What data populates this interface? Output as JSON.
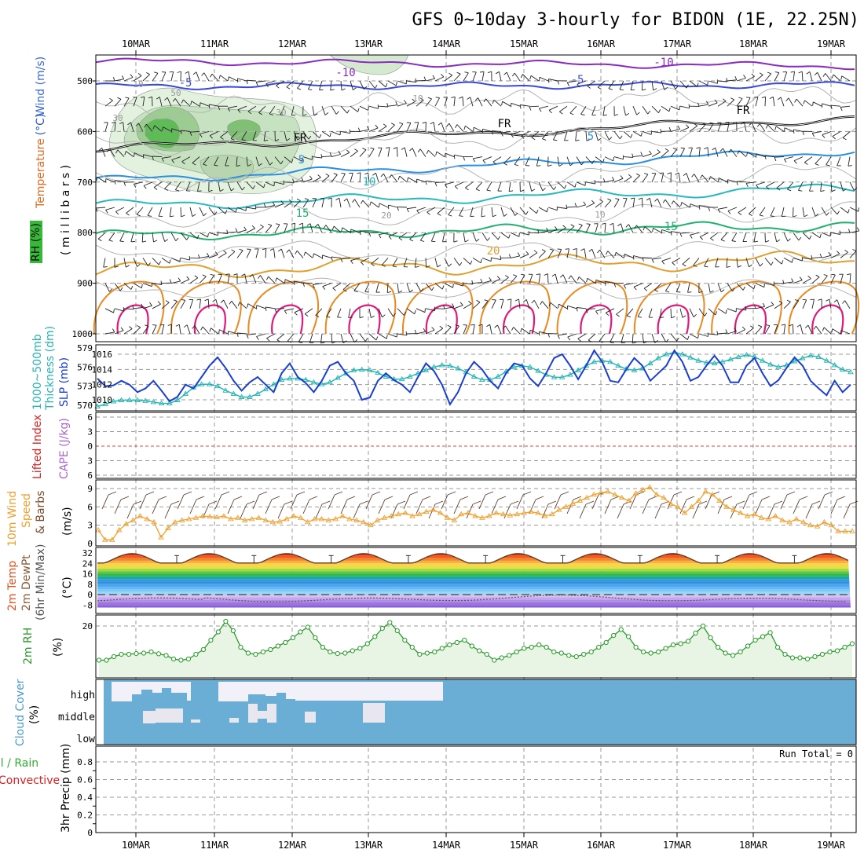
{
  "title": "GFS 0~10day 3-hourly for BIDON (1E, 22.25N)",
  "dates": [
    "10MAR",
    "11MAR",
    "12MAR",
    "13MAR",
    "14MAR",
    "15MAR",
    "16MAR",
    "17MAR",
    "18MAR",
    "19MAR"
  ],
  "panels": {
    "upper": {
      "labels": {
        "rh": "RH (%)",
        "temperature": "Temperature",
        "temp_unit": "(°C)",
        "wind": "Wind (m/s)",
        "mb": "( m i l l i b a r s )"
      },
      "yticks": [
        "500",
        "600",
        "700",
        "800",
        "900",
        "1000"
      ],
      "contour_labels": [
        "-10",
        "-10",
        "-5",
        "5",
        "5",
        "FR",
        "FR",
        "FR",
        "-5",
        "10",
        "15",
        "-15",
        "20",
        "10",
        "30",
        "30",
        "50",
        "10",
        "20",
        "10"
      ]
    },
    "slp": {
      "labels": {
        "thick": "1000~500mb",
        "thick2": "Thickness (dm)",
        "slp": "SLP (mb)"
      },
      "yticks_left": [
        "579",
        "576",
        "573",
        "570"
      ],
      "yticks_right": [
        "1016",
        "1014",
        "1012",
        "1010"
      ]
    },
    "cape": {
      "labels": {
        "li": "Lifted Index",
        "cape": "CAPE (J/kg)"
      },
      "yticks": [
        "6",
        "3",
        "0",
        "3",
        "6"
      ]
    },
    "wind": {
      "labels": {
        "a": "10m Wind",
        "b": "Speed",
        "c": "& Barbs",
        "unit": "(m/s)"
      },
      "yticks": [
        "9",
        "6",
        "3",
        "0"
      ]
    },
    "temp": {
      "labels": {
        "a": "2m Temp",
        "b": "2m DewPt",
        "c": "(6hr Min/Max)",
        "unit": "(°C)"
      },
      "yticks": [
        "32",
        "24",
        "16",
        "8",
        "0",
        "-8"
      ]
    },
    "rh2m": {
      "labels": {
        "a": "2m RH",
        "unit": "(%)"
      },
      "yticks": [
        "20"
      ]
    },
    "cloud": {
      "labels": {
        "a": "Cloud Cover",
        "unit": "(%)"
      },
      "levels": [
        "high",
        "middle",
        "low"
      ]
    },
    "precip": {
      "labels": {
        "a": "Total / Rain",
        "b": "Convective",
        "c": "3hr Precip (mm)"
      },
      "yticks": [
        "0.8",
        "0.6",
        "0.4",
        "0.2",
        "0"
      ],
      "run_total": "Run Total = 0"
    }
  },
  "colors": {
    "slp": "#1a3fd0",
    "thickness": "#22b3b3",
    "wind_speed": "#f0a030",
    "rh2m": "#2a9a2a",
    "cloud_bg": "#6aaed6",
    "cloud_fill": "#eeeef4",
    "rh_label": "#33aa33",
    "temp_label": "#e05020",
    "li_label": "#dd2020",
    "cape_label": "#aa66cc",
    "precip_total": "#33aa33",
    "precip_conv": "#dd2020"
  },
  "chart_data": [
    {
      "type": "line",
      "title": "1000~500mb Thickness (dm) / SLP (mb)",
      "x_labels": [
        "10MAR",
        "11MAR",
        "12MAR",
        "13MAR",
        "14MAR",
        "15MAR",
        "16MAR",
        "17MAR",
        "18MAR",
        "19MAR"
      ],
      "series": [
        {
          "name": "SLP (mb)",
          "values": [
            1012.8,
            1011.8,
            1011.9,
            1012.5,
            1012.0,
            1011.0,
            1011.5,
            1012.5,
            1011.2,
            1009.8,
            1010.4,
            1012.0,
            1011.5,
            1013.0,
            1014.5,
            1015.6,
            1014.2,
            1012.5,
            1011.2,
            1012.3,
            1013.0,
            1012.0,
            1011.0,
            1013.5,
            1014.8,
            1013.0,
            1012.2,
            1011.0,
            1012.5,
            1014.5,
            1015.0,
            1013.5,
            1012.5,
            1010.0,
            1010.3,
            1012.5,
            1013.5,
            1012.6,
            1012.0,
            1011.0,
            1013.0,
            1014.8,
            1013.8,
            1012.0,
            1009.4,
            1011.0,
            1013.5,
            1015.0,
            1014.0,
            1012.5,
            1011.5,
            1013.5,
            1014.8,
            1014.5,
            1012.8,
            1011.8,
            1013.5,
            1015.5,
            1016.0,
            1014.5,
            1012.7,
            1014.5,
            1016.5,
            1015.0,
            1012.5,
            1012.3,
            1014.0,
            1015.5,
            1014.5,
            1012.5,
            1013.5,
            1014.5,
            1016.5,
            1015.0,
            1012.5,
            1013.0,
            1014.5,
            1015.8,
            1014.5,
            1012.3,
            1012.3,
            1014.5,
            1015.5,
            1013.5,
            1011.8,
            1012.6,
            1014.2,
            1015.6,
            1014.5,
            1012.5,
            1011.5,
            1010.6,
            1012.5,
            1011.0,
            1012.0
          ]
        },
        {
          "name": "1000~500mb Thickness (dm)",
          "values": [
            569.8,
            570.2,
            570.6,
            570.8,
            570.8,
            570.8,
            570.7,
            570.5,
            570.3,
            570.3,
            570.8,
            571.8,
            572.8,
            573.3,
            573.3,
            573.0,
            572.3,
            571.8,
            571.3,
            571.3,
            571.8,
            572.5,
            573.3,
            574.0,
            574.2,
            574.2,
            574.0,
            573.6,
            573.3,
            573.6,
            574.3,
            575.0,
            575.5,
            575.6,
            575.5,
            575.1,
            574.5,
            574.1,
            574.1,
            574.5,
            575.0,
            575.5,
            576.0,
            576.3,
            576.2,
            575.8,
            575.2,
            574.5,
            574.0,
            574.0,
            574.5,
            575.3,
            576.0,
            576.2,
            576.0,
            575.4,
            574.8,
            574.4,
            574.4,
            574.8,
            575.5,
            576.2,
            576.8,
            577.0,
            576.8,
            576.2,
            575.7,
            575.5,
            575.8,
            576.6,
            577.4,
            578.0,
            578.3,
            578.0,
            577.5,
            577.0,
            576.7,
            576.6,
            576.8,
            577.2,
            577.6,
            577.9,
            577.6,
            577.0,
            576.4,
            576.0,
            576.3,
            576.9,
            577.4,
            577.8,
            577.6,
            577.0,
            576.3,
            575.6,
            575.2
          ]
        }
      ]
    },
    {
      "type": "line",
      "title": "10m Wind Speed (m/s)",
      "series": [
        {
          "name": "10m Wind Speed",
          "values": [
            2.2,
            0.6,
            0.6,
            2.2,
            3.2,
            3.8,
            4.5,
            4.0,
            3.5,
            1.0,
            2.5,
            3.5,
            3.8,
            4.0,
            4.2,
            4.5,
            4.4,
            4.3,
            4.5,
            4.0,
            4.2,
            3.8,
            4.0,
            4.2,
            3.8,
            3.5,
            3.6,
            4.0,
            4.5,
            4.2,
            3.5,
            4.0,
            4.0,
            3.8,
            4.0,
            4.5,
            4.0,
            3.8,
            3.5,
            3.0,
            3.8,
            4.2,
            4.5,
            4.8,
            5.0,
            4.5,
            4.8,
            5.2,
            5.5,
            5.0,
            4.2,
            3.8,
            4.8,
            5.0,
            4.5,
            4.2,
            4.5,
            5.0,
            4.8,
            4.6,
            4.8,
            5.0,
            5.2,
            5.0,
            4.5,
            4.8,
            5.5,
            6.0,
            6.5,
            7.0,
            7.5,
            8.0,
            8.3,
            8.5,
            8.0,
            7.5,
            7.0,
            8.2,
            8.8,
            9.2,
            8.0,
            7.5,
            6.5,
            6.0,
            5.0,
            6.0,
            7.0,
            8.5,
            8.0,
            7.0,
            6.0,
            5.5,
            5.0,
            4.5,
            4.8,
            4.2,
            4.0,
            4.5,
            3.8,
            3.5,
            4.0,
            3.5,
            3.0,
            2.8,
            3.5,
            3.0,
            2.0,
            2.0,
            2.0
          ]
        }
      ]
    },
    {
      "type": "line",
      "title": "2m RH (%)",
      "series": [
        {
          "name": "2m RH",
          "values": [
            5.5,
            5.5,
            7,
            8,
            8,
            8.3,
            8.5,
            9,
            8.2,
            7.5,
            6,
            5.5,
            6,
            8,
            10,
            14,
            17.5,
            22,
            18,
            11,
            8.5,
            8,
            9,
            10,
            11.5,
            13,
            15,
            17.5,
            19.5,
            15,
            11,
            9,
            8.3,
            8.5,
            9.5,
            10.5,
            12.5,
            15.5,
            19,
            21.5,
            18,
            14,
            11,
            8,
            8.5,
            9,
            10.5,
            12,
            13,
            14,
            11.5,
            9.5,
            8,
            5.5,
            6.5,
            7.5,
            9,
            10.5,
            11,
            12,
            11,
            9,
            8.5,
            7.5,
            7,
            8,
            9,
            11,
            13,
            16,
            18.5,
            15.5,
            11,
            9,
            8.5,
            9,
            10.5,
            12,
            12.5,
            13.5,
            17,
            20,
            15,
            11,
            8.5,
            7.5,
            9,
            11.5,
            14,
            15.5,
            17.2,
            11,
            8,
            6.5,
            6.5,
            6,
            7,
            8,
            9,
            9.5,
            11,
            12.5
          ]
        }
      ]
    }
  ]
}
